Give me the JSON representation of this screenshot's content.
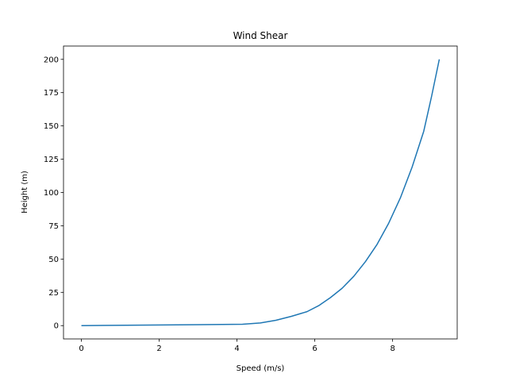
{
  "chart_data": {
    "type": "line",
    "title": "Wind Shear",
    "xlabel": "Speed (m/s)",
    "ylabel": "Height (m)",
    "xlim": [
      -0.46,
      9.66
    ],
    "ylim": [
      -10,
      210
    ],
    "xticks": [
      0,
      2,
      4,
      6,
      8
    ],
    "yticks": [
      0,
      25,
      50,
      75,
      100,
      125,
      150,
      175,
      200
    ],
    "xtick_labels": [
      "0",
      "2",
      "4",
      "6",
      "8"
    ],
    "ytick_labels": [
      "0",
      "25",
      "50",
      "75",
      "100",
      "125",
      "150",
      "175",
      "200"
    ],
    "grid": false,
    "legend": "none",
    "series": [
      {
        "color": "#1f77b4",
        "x": [
          0,
          4.14,
          4.6,
          5.0,
          5.4,
          5.8,
          6.1,
          6.4,
          6.7,
          7.0,
          7.3,
          7.6,
          7.9,
          8.2,
          8.5,
          8.8,
          9.0,
          9.2
        ],
        "y": [
          0,
          1,
          2,
          4,
          7,
          10.5,
          15,
          21,
          28,
          37,
          48,
          61,
          77,
          96,
          119,
          146,
          172,
          200
        ]
      }
    ]
  }
}
